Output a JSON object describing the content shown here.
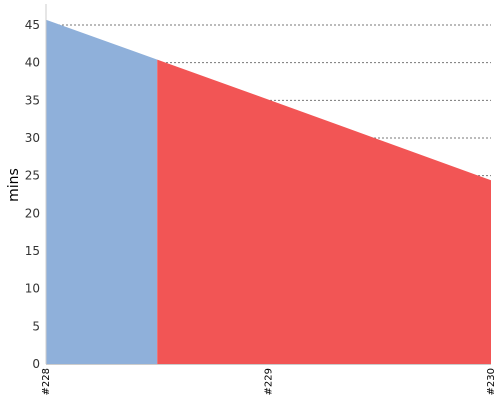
{
  "chart_data": {
    "type": "area",
    "title": "",
    "xlabel": "",
    "ylabel": "mins",
    "categories": [
      "#228",
      "#229",
      "#230"
    ],
    "values": [
      45.7,
      35.1,
      24.4
    ],
    "ylim": [
      0,
      45
    ],
    "yticks": [
      0,
      5,
      10,
      15,
      20,
      25,
      30,
      35,
      40,
      45
    ],
    "ytick_labels": [
      "0",
      "5",
      "10",
      "15",
      "20",
      "25",
      "30",
      "35",
      "40",
      "45"
    ],
    "grid": true,
    "legend": "none",
    "status_change_at": 0.5,
    "regions": [
      {
        "from": 0,
        "to": 0.5,
        "color": "#8fb0da",
        "status": "success"
      },
      {
        "from": 0.5,
        "to": 2,
        "color": "#f25555",
        "status": "failure"
      }
    ],
    "colors": {
      "gridline": "#777777",
      "axis": "#cccccc",
      "tick_text": "#333333"
    }
  }
}
